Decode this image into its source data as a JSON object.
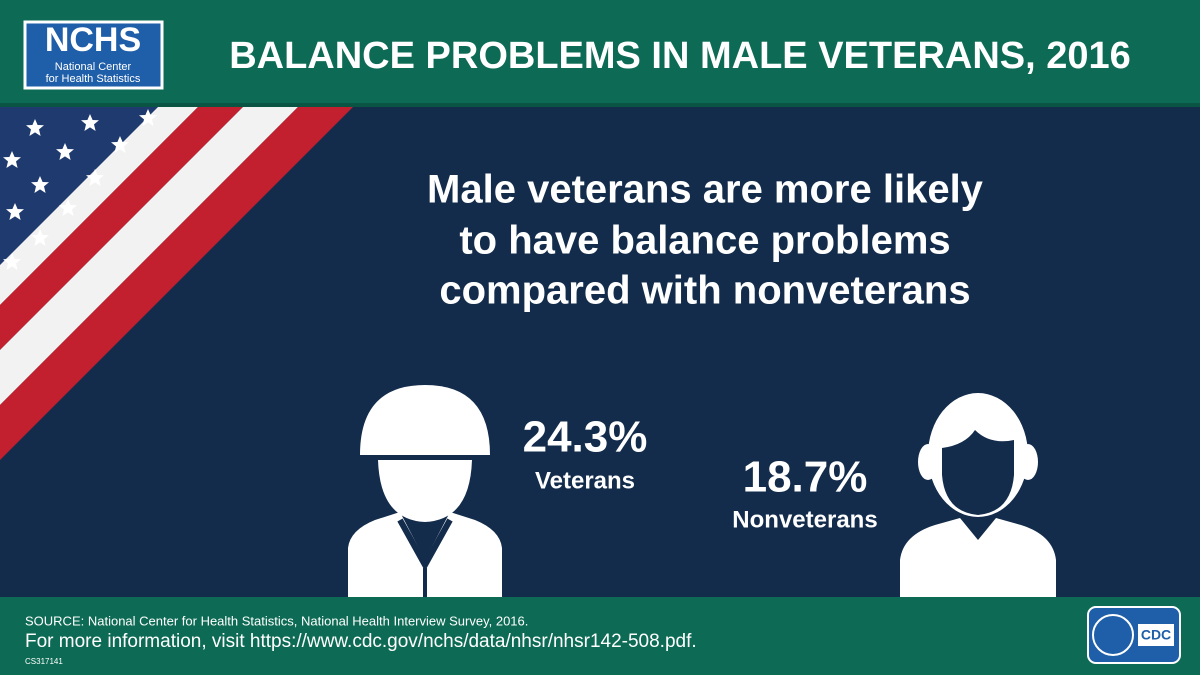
{
  "header": {
    "logo_title": "NCHS",
    "logo_subtitle": [
      "National Center",
      "for Health Statistics"
    ],
    "title": "BALANCE PROBLEMS IN MALE VETERANS, 2016"
  },
  "headline": [
    "Male veterans are more likely",
    "to have balance problems",
    "compared with nonveterans"
  ],
  "stats": [
    {
      "value": "24.3%",
      "label": "Veterans"
    },
    {
      "value": "18.7%",
      "label": "Nonveterans"
    }
  ],
  "footer": {
    "source": "SOURCE: National Center for Health Statistics, National Health Interview Survey, 2016.",
    "more_info": "For more information, visit https://www.cdc.gov/nchs/data/nhsr/nhsr142-508.pdf.",
    "code": "CS317141",
    "logo": "CDC"
  }
}
